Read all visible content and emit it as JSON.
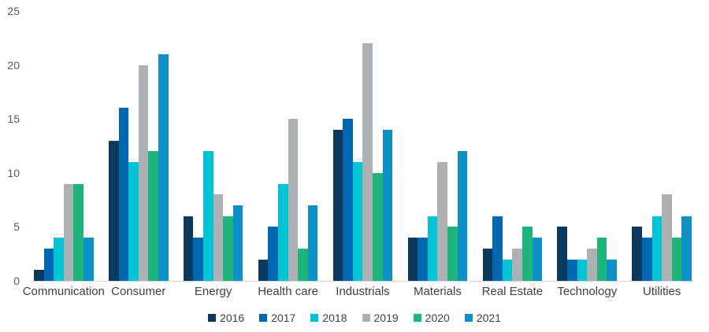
{
  "chart_data": {
    "type": "bar",
    "title": "",
    "xlabel": "",
    "ylabel": "",
    "ylim": [
      0,
      25
    ],
    "yticks": [
      0,
      5,
      10,
      15,
      20,
      25
    ],
    "grid": false,
    "legend_position": "bottom-center",
    "categories": [
      "Communication",
      "Consumer",
      "Energy",
      "Health care",
      "Industrials",
      "Materials",
      "Real Estate",
      "Technology",
      "Utilities"
    ],
    "series": [
      {
        "name": "2016",
        "color": "#0c3a5e",
        "values": [
          1,
          13,
          6,
          2,
          14,
          4,
          3,
          5,
          5
        ]
      },
      {
        "name": "2017",
        "color": "#0068b1",
        "values": [
          3,
          16,
          4,
          5,
          15,
          4,
          6,
          2,
          4
        ]
      },
      {
        "name": "2018",
        "color": "#00c4d4",
        "values": [
          4,
          11,
          12,
          9,
          11,
          6,
          2,
          2,
          6
        ]
      },
      {
        "name": "2019",
        "color": "#aeb1b3",
        "values": [
          9,
          20,
          8,
          15,
          22,
          11,
          3,
          3,
          8
        ]
      },
      {
        "name": "2020",
        "color": "#1db57b",
        "values": [
          9,
          12,
          6,
          3,
          10,
          5,
          5,
          4,
          4
        ]
      },
      {
        "name": "2021",
        "color": "#0d90c5",
        "values": [
          4,
          21,
          7,
          7,
          14,
          12,
          4,
          2,
          6
        ]
      }
    ]
  },
  "style": {
    "tick_color": "#595959",
    "category_label_color": "#3f3f3f",
    "axis_line_color": "#d9d9d9",
    "background": "#ffffff"
  }
}
